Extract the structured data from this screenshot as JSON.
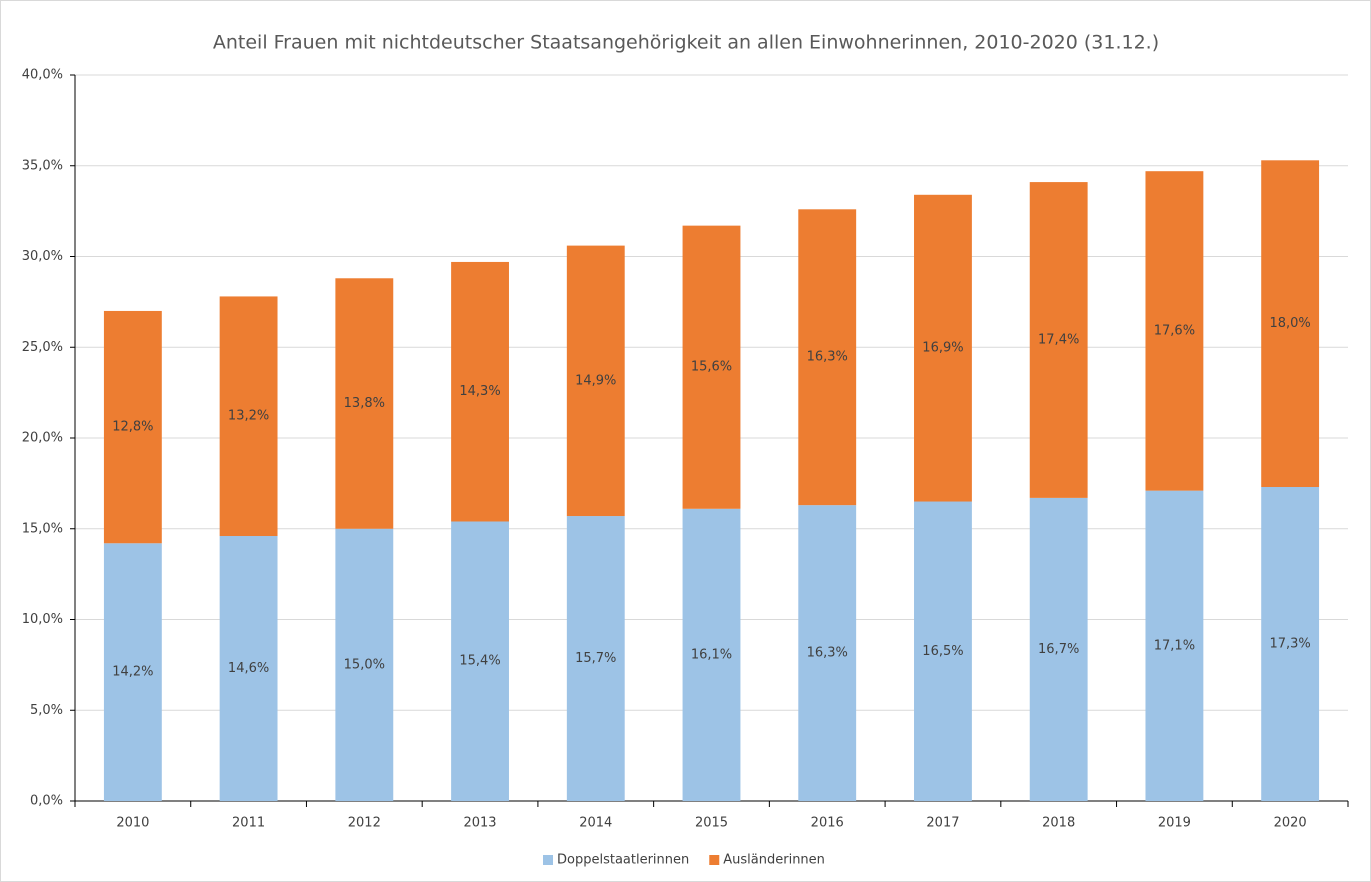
{
  "chart_data": {
    "type": "stacked_bar",
    "title": "Anteil Frauen mit nichtdeutscher Staatsangehörigkeit an allen Einwohnerinnen, 2010-2020 (31.12.)",
    "categories": [
      "2010",
      "2011",
      "2012",
      "2013",
      "2014",
      "2015",
      "2016",
      "2017",
      "2018",
      "2019",
      "2020"
    ],
    "series": [
      {
        "name": "Doppelstaatlerinnen",
        "color": "#9dc3e6",
        "values": [
          14.2,
          14.6,
          15.0,
          15.4,
          15.7,
          16.1,
          16.3,
          16.5,
          16.7,
          17.1,
          17.3
        ],
        "value_labels": [
          "14,2%",
          "14,6%",
          "15,0%",
          "15,4%",
          "15,7%",
          "16,1%",
          "16,3%",
          "16,5%",
          "16,7%",
          "17,1%",
          "17,3%"
        ]
      },
      {
        "name": "Ausländerinnen",
        "color": "#ed7d31",
        "values": [
          12.8,
          13.2,
          13.8,
          14.3,
          14.9,
          15.6,
          16.3,
          16.9,
          17.4,
          17.6,
          18.0
        ],
        "value_labels": [
          "12,8%",
          "13,2%",
          "13,8%",
          "14,3%",
          "14,9%",
          "15,6%",
          "16,3%",
          "16,9%",
          "17,4%",
          "17,6%",
          "18,0%"
        ]
      }
    ],
    "ylim": [
      0,
      40
    ],
    "yticks": [
      {
        "value": 0,
        "label": "0,0%"
      },
      {
        "value": 5,
        "label": "5,0%"
      },
      {
        "value": 10,
        "label": "10,0%"
      },
      {
        "value": 15,
        "label": "15,0%"
      },
      {
        "value": 20,
        "label": "20,0%"
      },
      {
        "value": 25,
        "label": "25,0%"
      },
      {
        "value": 30,
        "label": "30,0%"
      },
      {
        "value": 35,
        "label": "35,0%"
      },
      {
        "value": 40,
        "label": "40,0%"
      }
    ],
    "grid": true,
    "legend": "bottom"
  }
}
